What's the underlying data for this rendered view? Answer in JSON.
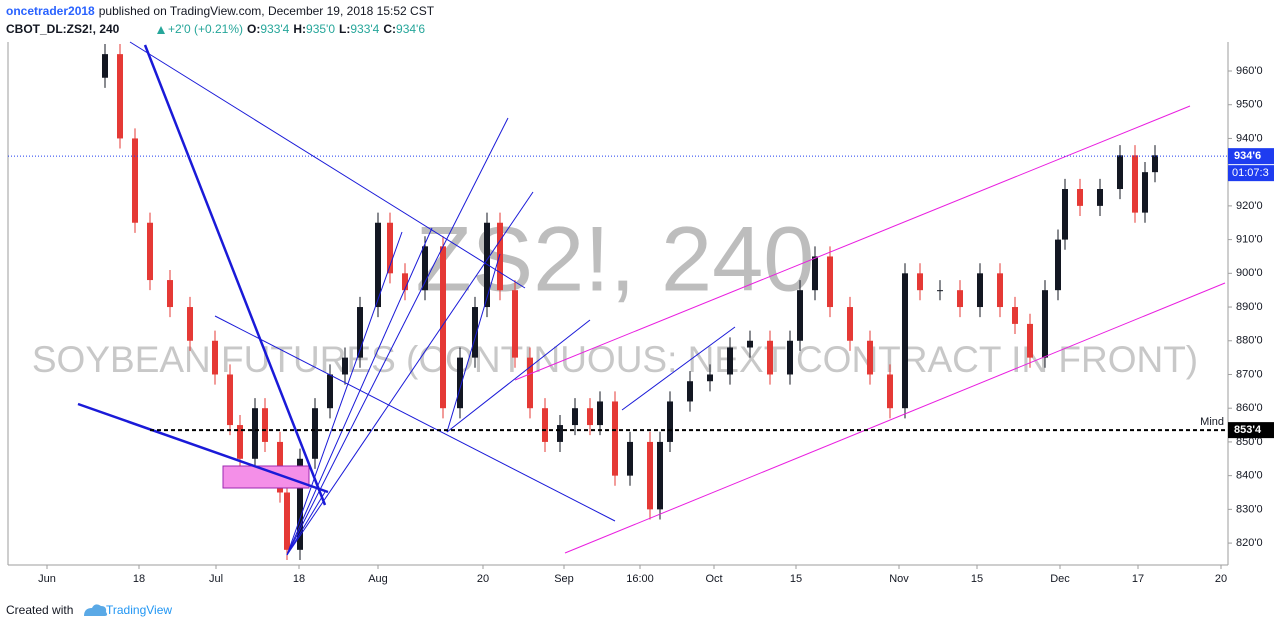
{
  "header": {
    "author": "oncetrader2018",
    "published": "published on TradingView.com, December 19, 2018 15:52 CST",
    "symbol": "CBOT_DL:ZS2!, 240",
    "change": "+2'0 (+0.21%)",
    "ohlc": [
      {
        "key": "O:",
        "value": "933'4"
      },
      {
        "key": "H:",
        "value": "935'0"
      },
      {
        "key": "L:",
        "value": "933'4"
      },
      {
        "key": "C:",
        "value": "934'6"
      }
    ]
  },
  "chart_data": {
    "type": "candlestick",
    "watermark": "ZS2!, 240",
    "watermark_subtitle": "SOYBEAN FUTURES (CONTINUOUS: NEXT CONTRACT IN FRONT)",
    "x": [
      9.7,
      11.2,
      12.7,
      14.2,
      16.2,
      18.2,
      20.7,
      22.2,
      23.2,
      24.7,
      25.7,
      27.2,
      27.9,
      29.2,
      30.7,
      32.2,
      33.7,
      35.2,
      37.0,
      38.2,
      39.7,
      41.7,
      43.5,
      45.2,
      46.7,
      47.9,
      49.2,
      50.7,
      52.2,
      53.7,
      55.2,
      56.7,
      58.2,
      59.2,
      60.7,
      62.2,
      64.2,
      65.2,
      66.2,
      68.2,
      70.2,
      72.2,
      74.2,
      76.2,
      78.2,
      79.2,
      80.7,
      82.2,
      84.2,
      86.2,
      88.2,
      89.7,
      91.2,
      93.2,
      95.2,
      97.2,
      99.2,
      100.7,
      102.2,
      103.7,
      105.0,
      105.7,
      107.2,
      109.2,
      111.2,
      112.7,
      113.7,
      114.7
    ],
    "open": [
      958,
      965,
      940,
      915,
      898,
      890,
      880,
      870,
      855,
      845,
      860,
      850,
      835,
      818,
      845,
      860,
      870,
      875,
      890,
      915,
      900,
      895,
      908,
      860,
      875,
      890,
      915,
      895,
      875,
      860,
      850,
      855,
      860,
      855,
      862,
      840,
      850,
      830,
      850,
      862,
      868,
      870,
      878,
      880,
      870,
      880,
      895,
      905,
      890,
      880,
      870,
      860,
      900,
      895,
      895,
      890,
      900,
      890,
      885,
      875,
      895,
      910,
      925,
      920,
      925,
      935,
      918,
      930
    ],
    "high": [
      968,
      968,
      943,
      918,
      901,
      893,
      883,
      873,
      858,
      863,
      863,
      853,
      838,
      848,
      863,
      873,
      878,
      893,
      918,
      918,
      903,
      911,
      911,
      878,
      893,
      918,
      918,
      898,
      878,
      863,
      858,
      863,
      863,
      865,
      865,
      853,
      853,
      853,
      865,
      871,
      873,
      881,
      883,
      883,
      883,
      898,
      908,
      908,
      893,
      883,
      873,
      903,
      903,
      898,
      898,
      903,
      903,
      893,
      888,
      898,
      913,
      928,
      928,
      928,
      938,
      938,
      933,
      938
    ],
    "low": [
      955,
      937,
      912,
      895,
      887,
      877,
      867,
      852,
      842,
      842,
      847,
      832,
      815,
      815,
      842,
      857,
      867,
      872,
      887,
      897,
      892,
      892,
      857,
      857,
      872,
      887,
      892,
      872,
      857,
      847,
      847,
      852,
      852,
      852,
      837,
      837,
      827,
      827,
      847,
      859,
      865,
      867,
      875,
      867,
      867,
      877,
      892,
      887,
      877,
      867,
      857,
      857,
      892,
      892,
      887,
      887,
      887,
      882,
      872,
      872,
      892,
      907,
      917,
      917,
      922,
      915,
      915,
      927
    ],
    "close": [
      965,
      940,
      915,
      898,
      890,
      880,
      870,
      855,
      845,
      860,
      850,
      835,
      818,
      845,
      860,
      870,
      875,
      890,
      915,
      900,
      895,
      908,
      860,
      875,
      890,
      915,
      895,
      875,
      860,
      850,
      855,
      860,
      855,
      862,
      840,
      850,
      830,
      850,
      862,
      868,
      870,
      878,
      880,
      870,
      880,
      895,
      905,
      890,
      880,
      870,
      860,
      900,
      895,
      895,
      890,
      900,
      890,
      885,
      875,
      895,
      910,
      925,
      920,
      925,
      935,
      918,
      930,
      935
    ],
    "up_color": "#131722",
    "down_color": "#e53935",
    "xlim": [
      0,
      122
    ],
    "xticks": [
      {
        "value": 3.9,
        "label": "Jun"
      },
      {
        "value": 13.1,
        "label": "18"
      },
      {
        "value": 20.8,
        "label": "Jul"
      },
      {
        "value": 29.1,
        "label": "18"
      },
      {
        "value": 37,
        "label": "Aug"
      },
      {
        "value": 47.5,
        "label": "20"
      },
      {
        "value": 55.6,
        "label": "Sep"
      },
      {
        "value": 63.2,
        "label": "16:00"
      },
      {
        "value": 70.6,
        "label": "Oct"
      },
      {
        "value": 78.8,
        "label": "15"
      },
      {
        "value": 89.1,
        "label": "Nov"
      },
      {
        "value": 96.9,
        "label": "15"
      },
      {
        "value": 105.2,
        "label": "Dec"
      },
      {
        "value": 113,
        "label": "17"
      },
      {
        "value": 121.3,
        "label": "20"
      }
    ],
    "ylim": [
      813.5,
      968.6
    ],
    "yticks": [
      {
        "value": 820,
        "label": "820'0"
      },
      {
        "value": 830,
        "label": "830'0"
      },
      {
        "value": 840,
        "label": "840'0"
      },
      {
        "value": 850,
        "label": "850'0"
      },
      {
        "value": 860,
        "label": "860'0"
      },
      {
        "value": 870,
        "label": "870'0"
      },
      {
        "value": 880,
        "label": "880'0"
      },
      {
        "value": 890,
        "label": "890'0"
      },
      {
        "value": 900,
        "label": "900'0"
      },
      {
        "value": 910,
        "label": "910'0"
      },
      {
        "value": 920,
        "label": "920'0"
      },
      {
        "value": 930,
        "label": "930'0"
      },
      {
        "value": 940,
        "label": "940'0"
      },
      {
        "value": 950,
        "label": "950'0"
      },
      {
        "value": 960,
        "label": "960'0"
      }
    ],
    "last_price": {
      "value": 934.75,
      "label": "934'6",
      "color": "#1e3cf0"
    },
    "countdown": "01:07:3",
    "level": {
      "value": 853.5,
      "label": "853'4",
      "name": "Mind",
      "color": "#000000"
    }
  },
  "footer": {
    "text": "Created with",
    "brand": "TradingView"
  }
}
